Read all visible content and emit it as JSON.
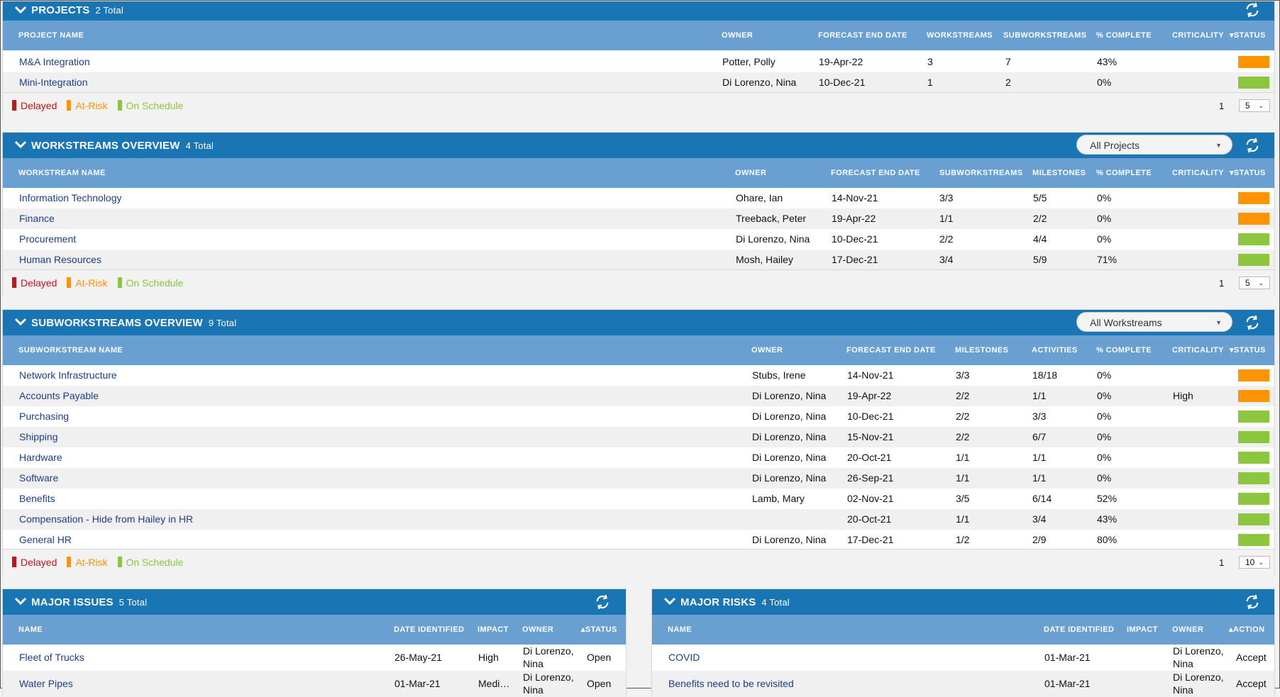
{
  "colors": {
    "delayed": "#c0161c",
    "at_risk": "#ff9300",
    "on_schedule": "#8cc63e",
    "header": "#1a75b5",
    "subheader": "#6a9fd2",
    "link": "#1c3f8a"
  },
  "legend": {
    "delayed": "Delayed",
    "at_risk": "At-Risk",
    "on_schedule": "On Schedule"
  },
  "projects": {
    "title": "PROJECTS",
    "count": "2 Total",
    "columns": [
      "PROJECT NAME",
      "OWNER",
      "FORECAST END DATE",
      "WORKSTREAMS",
      "SUBWORKSTREAMS",
      "% COMPLETE",
      "CRITICALITY",
      "STATUS"
    ],
    "rows": [
      {
        "name": "M&A Integration",
        "owner": "Potter, Polly",
        "end": "19-Apr-22",
        "ws": "3",
        "sws": "7",
        "pct": "43%",
        "crit": "",
        "status": "at_risk"
      },
      {
        "name": "Mini-Integration",
        "owner": "Di Lorenzo, Nina",
        "end": "10-Dec-21",
        "ws": "1",
        "sws": "2",
        "pct": "0%",
        "crit": "",
        "status": "on_schedule"
      }
    ],
    "page": "1",
    "page_size": "5"
  },
  "workstreams": {
    "title": "WORKSTREAMS OVERVIEW",
    "count": "4 Total",
    "filter": "All Projects",
    "columns": [
      "WORKSTREAM NAME",
      "OWNER",
      "FORECAST END DATE",
      "SUBWORKSTREAMS",
      "MILESTONES",
      "% COMPLETE",
      "CRITICALITY",
      "STATUS"
    ],
    "rows": [
      {
        "name": "Information Technology",
        "owner": "Ohare, Ian",
        "end": "14-Nov-21",
        "sws": "3/3",
        "ms": "5/5",
        "pct": "0%",
        "crit": "",
        "status": "at_risk"
      },
      {
        "name": "Finance",
        "owner": "Treeback, Peter",
        "end": "19-Apr-22",
        "sws": "1/1",
        "ms": "2/2",
        "pct": "0%",
        "crit": "",
        "status": "at_risk"
      },
      {
        "name": "Procurement",
        "owner": "Di Lorenzo, Nina",
        "end": "10-Dec-21",
        "sws": "2/2",
        "ms": "4/4",
        "pct": "0%",
        "crit": "",
        "status": "on_schedule"
      },
      {
        "name": "Human Resources",
        "owner": "Mosh, Hailey",
        "end": "17-Dec-21",
        "sws": "3/4",
        "ms": "5/9",
        "pct": "71%",
        "crit": "",
        "status": "on_schedule"
      }
    ],
    "page": "1",
    "page_size": "5"
  },
  "subworkstreams": {
    "title": "SUBWORKSTREAMS OVERVIEW",
    "count": "9 Total",
    "filter": "All Workstreams",
    "columns": [
      "SUBWORKSTREAM NAME",
      "OWNER",
      "FORECAST END DATE",
      "MILESTONES",
      "ACTIVITIES",
      "% COMPLETE",
      "CRITICALITY",
      "STATUS"
    ],
    "rows": [
      {
        "name": "Network Infrastructure",
        "owner": "Stubs, Irene",
        "end": "14-Nov-21",
        "ms": "3/3",
        "act": "18/18",
        "pct": "0%",
        "crit": "",
        "status": "at_risk"
      },
      {
        "name": "Accounts Payable",
        "owner": "Di Lorenzo, Nina",
        "end": "19-Apr-22",
        "ms": "2/2",
        "act": "1/1",
        "pct": "0%",
        "crit": "High",
        "status": "at_risk"
      },
      {
        "name": "Purchasing",
        "owner": "Di Lorenzo, Nina",
        "end": "10-Dec-21",
        "ms": "2/2",
        "act": "3/3",
        "pct": "0%",
        "crit": "",
        "status": "on_schedule"
      },
      {
        "name": "Shipping",
        "owner": "Di Lorenzo, Nina",
        "end": "15-Nov-21",
        "ms": "2/2",
        "act": "6/7",
        "pct": "0%",
        "crit": "",
        "status": "on_schedule"
      },
      {
        "name": "Hardware",
        "owner": "Di Lorenzo, Nina",
        "end": "20-Oct-21",
        "ms": "1/1",
        "act": "1/1",
        "pct": "0%",
        "crit": "",
        "status": "on_schedule"
      },
      {
        "name": "Software",
        "owner": "Di Lorenzo, Nina",
        "end": "26-Sep-21",
        "ms": "1/1",
        "act": "1/1",
        "pct": "0%",
        "crit": "",
        "status": "on_schedule"
      },
      {
        "name": "Benefits",
        "owner": "Lamb, Mary",
        "end": "02-Nov-21",
        "ms": "3/5",
        "act": "6/14",
        "pct": "52%",
        "crit": "",
        "status": "on_schedule"
      },
      {
        "name": "Compensation - Hide from Hailey in HR",
        "owner": "",
        "end": "20-Oct-21",
        "ms": "1/1",
        "act": "3/4",
        "pct": "43%",
        "crit": "",
        "status": "on_schedule"
      },
      {
        "name": "General HR",
        "owner": "Di Lorenzo, Nina",
        "end": "17-Dec-21",
        "ms": "1/2",
        "act": "2/9",
        "pct": "80%",
        "crit": "",
        "status": "on_schedule"
      }
    ],
    "page": "1",
    "page_size": "10"
  },
  "issues": {
    "title": "MAJOR ISSUES",
    "count": "5 Total",
    "columns": [
      "NAME",
      "DATE IDENTIFIED",
      "IMPACT",
      "OWNER",
      "STATUS"
    ],
    "rows": [
      {
        "name": "Fleet of Trucks",
        "date": "26-May-21",
        "impact": "High",
        "owner1": "Di Lorenzo,",
        "owner2": "Nina",
        "status": "Open"
      },
      {
        "name": "Water Pipes",
        "date": "01-Mar-21",
        "impact": "Medi…",
        "owner1": "Di Lorenzo,",
        "owner2": "Nina",
        "status": "Open"
      }
    ]
  },
  "risks": {
    "title": "MAJOR RISKS",
    "count": "4 Total",
    "columns": [
      "NAME",
      "DATE IDENTIFIED",
      "IMPACT",
      "OWNER",
      "ACTION"
    ],
    "rows": [
      {
        "name": "COVID",
        "date": "01-Mar-21",
        "impact": "",
        "owner1": "Di Lorenzo,",
        "owner2": "Nina",
        "action": "Accept"
      },
      {
        "name": "Benefits need to be revisited",
        "date": "01-Mar-21",
        "impact": "",
        "owner1": "Di Lorenzo,",
        "owner2": "Nina",
        "action": "Accept"
      }
    ]
  }
}
